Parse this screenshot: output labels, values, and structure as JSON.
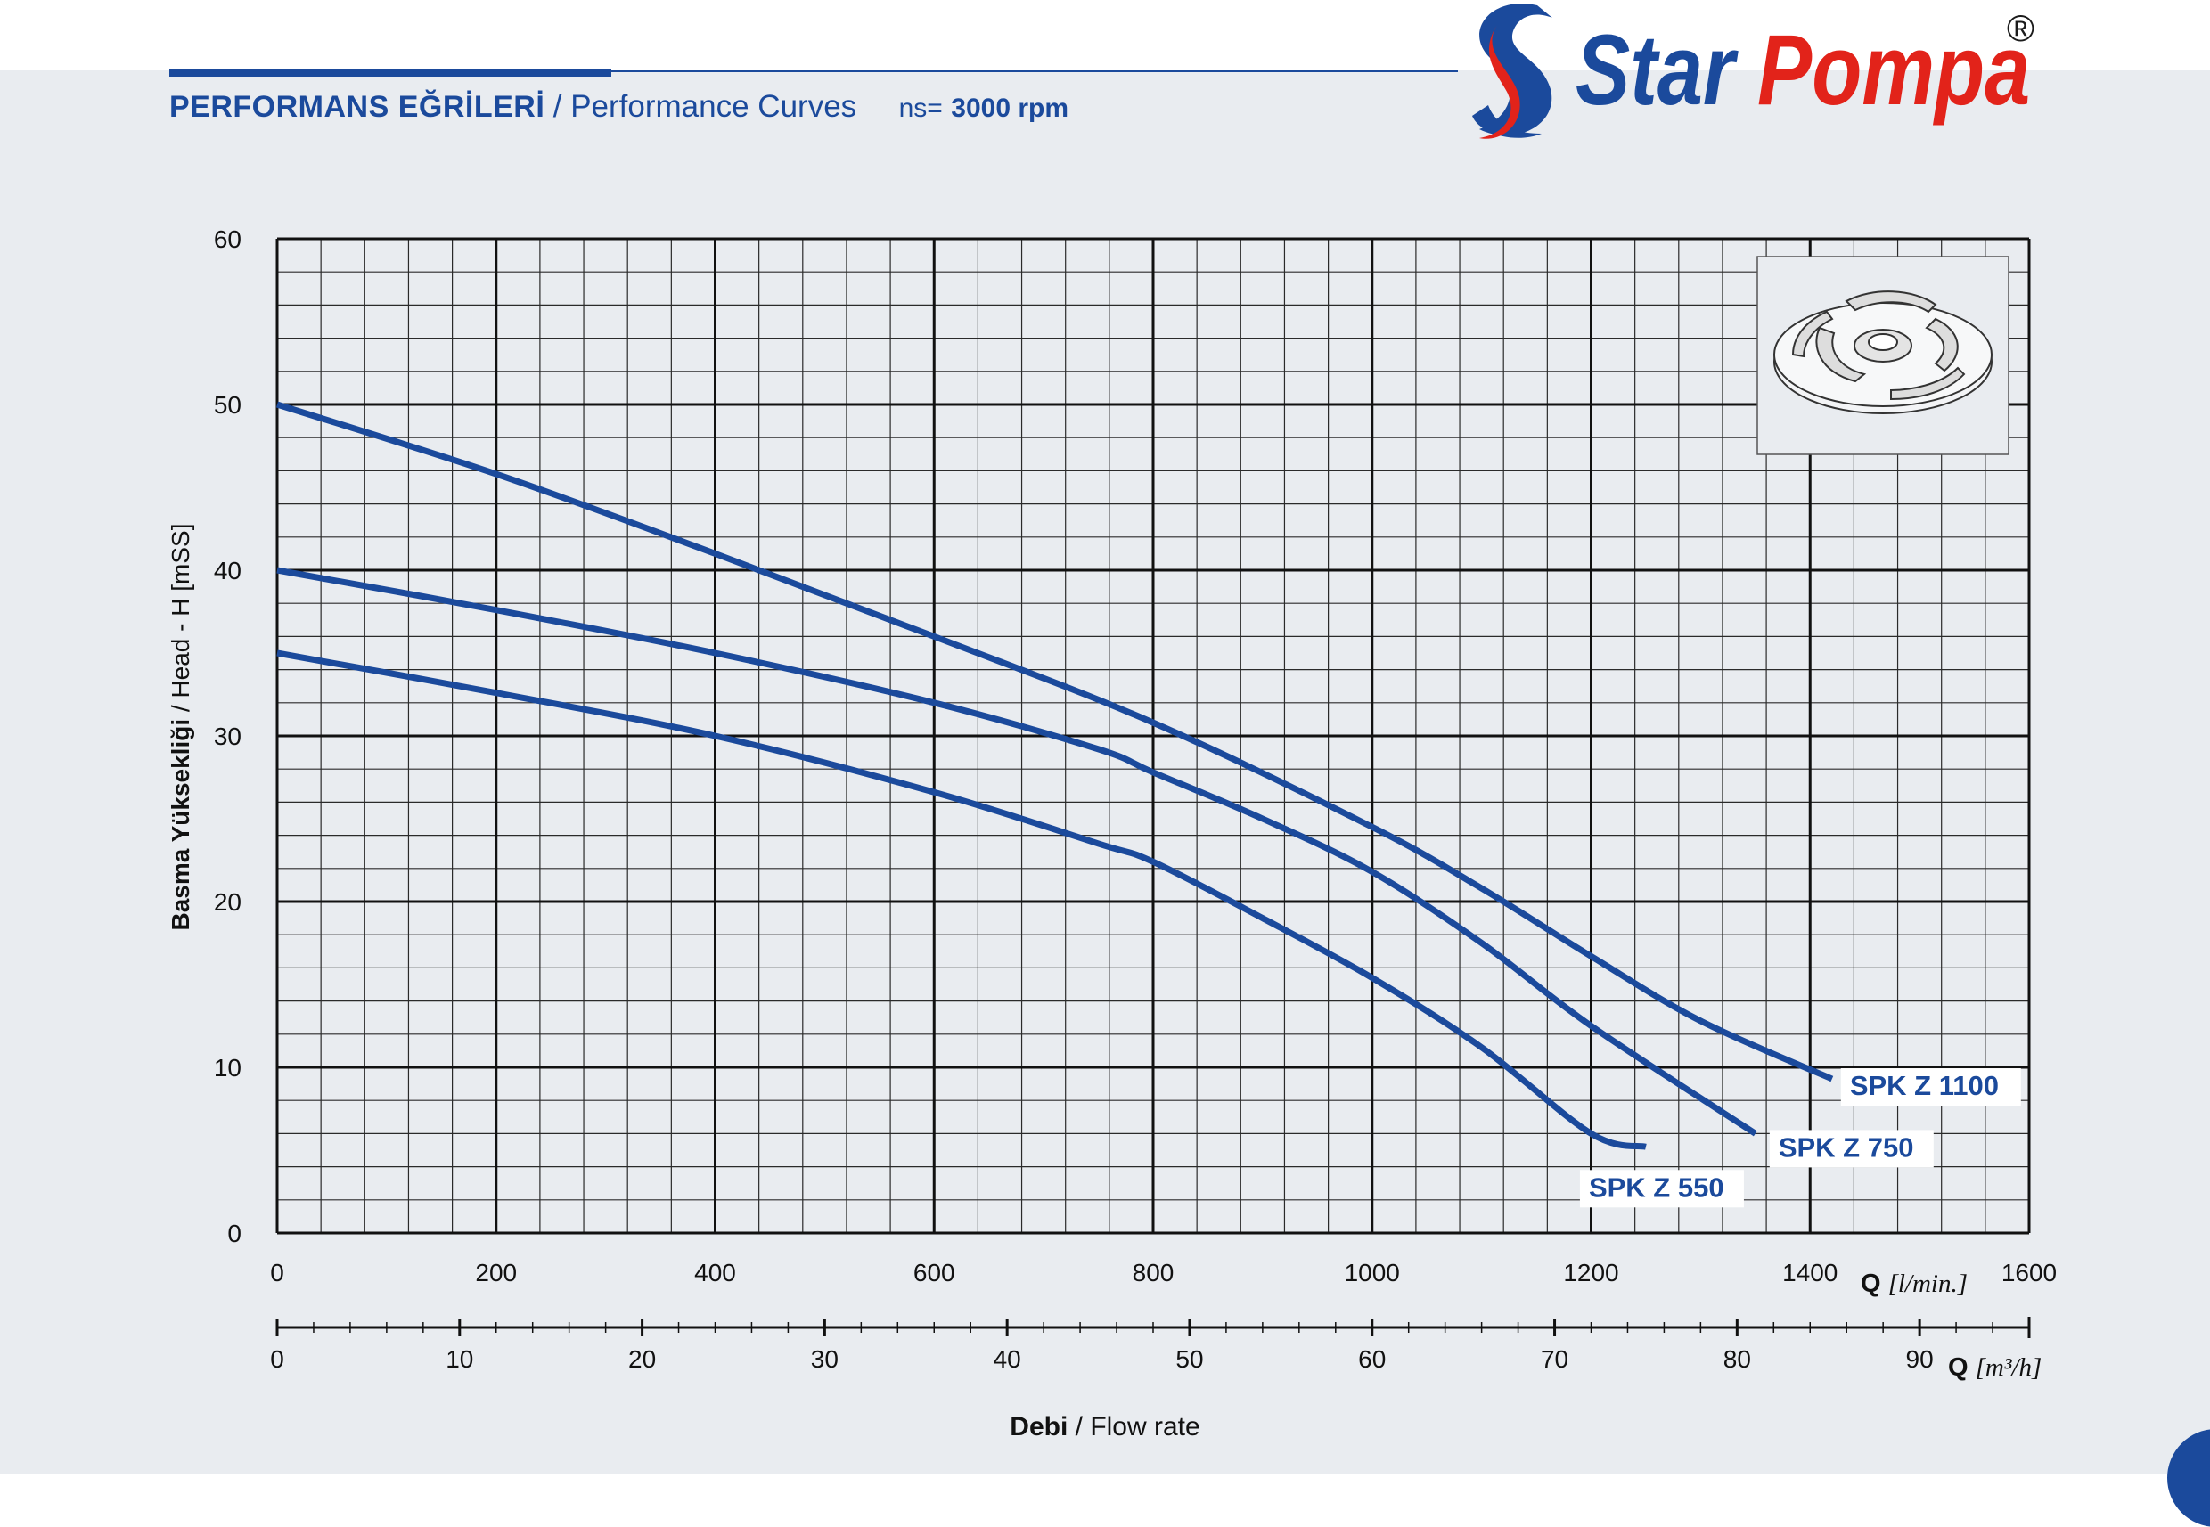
{
  "header": {
    "title_tr": "PERFORMANS EĞRİLERİ",
    "title_en": "/ Performance Curves",
    "ns_label": "ns=",
    "rpm": "3000 rpm"
  },
  "brand": {
    "name_part1": "Star",
    "name_part2": "Pompa",
    "registered": "®",
    "colors": {
      "blue": "#1b4a9c",
      "red": "#e2231a"
    }
  },
  "icons": {
    "impeller": "impeller-icon",
    "logo": "star-pompa-logo-icon"
  },
  "chart_data": {
    "type": "line",
    "ylabel_bold": "Basma Yüksekliği",
    "ylabel_rest": " / Head - H [mSS]",
    "xlabel_bold": "Debi",
    "xlabel_rest": " / Flow rate",
    "x_unit_symbol": "Q",
    "x_unit": "[l/min.]",
    "x2_unit_symbol": "Q",
    "x2_unit": "[m³/h]",
    "xlim": [
      0,
      1600
    ],
    "ylim": [
      0,
      60
    ],
    "x2lim": [
      0,
      96
    ],
    "x_ticks": [
      0,
      200,
      400,
      600,
      800,
      1000,
      1200,
      1400,
      1600
    ],
    "y_ticks": [
      0,
      10,
      20,
      30,
      40,
      50,
      60
    ],
    "x2_ticks": [
      0,
      10,
      20,
      30,
      40,
      50,
      60,
      70,
      80,
      90
    ],
    "grid": true,
    "curve_color": "#1b4a9c",
    "series": [
      {
        "name": "SPK Z 1100",
        "points": [
          [
            0,
            50
          ],
          [
            200,
            45.8
          ],
          [
            400,
            41
          ],
          [
            600,
            36
          ],
          [
            800,
            30.8
          ],
          [
            1000,
            24.5
          ],
          [
            1100,
            20.8
          ],
          [
            1200,
            16.7
          ],
          [
            1300,
            12.8
          ],
          [
            1420,
            9.3
          ]
        ]
      },
      {
        "name": "SPK Z 750",
        "points": [
          [
            0,
            40
          ],
          [
            200,
            37.6
          ],
          [
            400,
            35
          ],
          [
            600,
            32
          ],
          [
            750,
            29.2
          ],
          [
            800,
            27.8
          ],
          [
            900,
            25
          ],
          [
            1000,
            21.8
          ],
          [
            1100,
            17.5
          ],
          [
            1200,
            12.5
          ],
          [
            1350,
            6
          ]
        ]
      },
      {
        "name": "SPK Z 550",
        "points": [
          [
            0,
            35
          ],
          [
            200,
            32.6
          ],
          [
            400,
            30
          ],
          [
            600,
            26.6
          ],
          [
            750,
            23.5
          ],
          [
            800,
            22.4
          ],
          [
            900,
            19
          ],
          [
            1000,
            15.4
          ],
          [
            1100,
            11.2
          ],
          [
            1200,
            6
          ],
          [
            1250,
            5.2
          ]
        ]
      }
    ]
  }
}
